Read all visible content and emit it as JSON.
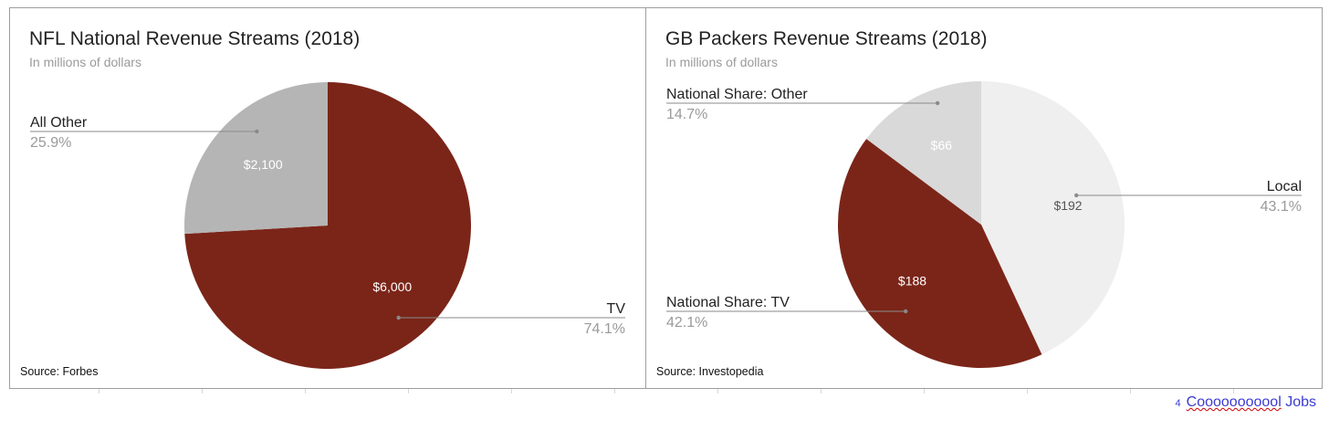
{
  "chart_data": [
    {
      "type": "pie",
      "title": "NFL National Revenue Streams (2018)",
      "subtitle": "In millions of dollars",
      "source": "Source: Forbes",
      "slices": [
        {
          "label": "TV",
          "value": 6000,
          "value_label": "$6,000",
          "percent_label": "74.1%",
          "color": "#7b2519",
          "value_color": "#ffffff"
        },
        {
          "label": "All Other",
          "value": 2100,
          "value_label": "$2,100",
          "percent_label": "25.9%",
          "color": "#b5b5b5",
          "value_color": "#ffffff"
        }
      ]
    },
    {
      "type": "pie",
      "title": "GB Packers Revenue Streams (2018)",
      "subtitle": "In millions of dollars",
      "source": "Source: Investopedia",
      "slices": [
        {
          "label": "Local",
          "value": 192,
          "value_label": "$192",
          "percent_label": "43.1%",
          "color": "#efefef",
          "value_color": "#555555"
        },
        {
          "label": "National Share: TV",
          "value": 188,
          "value_label": "$188",
          "percent_label": "42.1%",
          "color": "#7b2519",
          "value_color": "#ffffff"
        },
        {
          "label": "National Share: Other",
          "value": 66,
          "value_label": "$66",
          "percent_label": "14.7%",
          "color": "#d9d9d9",
          "value_color": "#ffffff"
        }
      ]
    }
  ],
  "watermark": {
    "number": "4",
    "text": "Cooooooooool",
    "suffix": "Jobs"
  }
}
